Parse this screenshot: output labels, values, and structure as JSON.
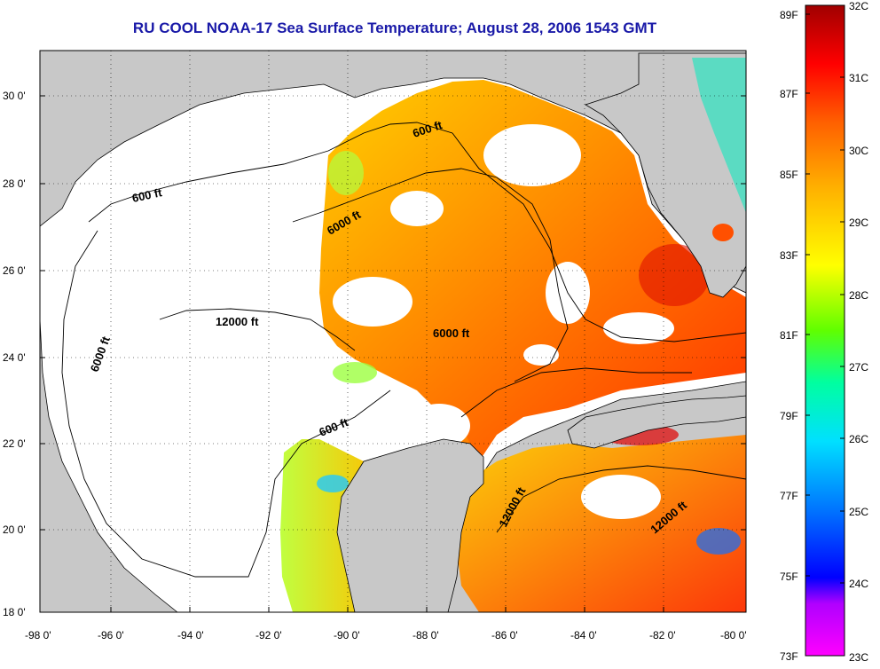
{
  "title": "RU COOL  NOAA-17  Sea Surface Temperature;  August 28, 2006 1543 GMT",
  "lat_ticks": [
    "30 0'",
    "28 0'",
    "26 0'",
    "24 0'",
    "22 0'",
    "20 0'",
    "18 0'"
  ],
  "lon_ticks": [
    "-98 0'",
    "-96 0'",
    "-94 0'",
    "-92 0'",
    "-90 0'",
    "-88 0'",
    "-86 0'",
    "-84 0'",
    "-82 0'",
    "-80 0'"
  ],
  "contour_labels": [
    {
      "text": "600 ft"
    },
    {
      "text": "600 ft"
    },
    {
      "text": "600 ft"
    },
    {
      "text": "6000 ft"
    },
    {
      "text": "6000 ft"
    },
    {
      "text": "6000 ft"
    },
    {
      "text": "12000 ft"
    },
    {
      "text": "12000 ft"
    },
    {
      "text": "12000 ft"
    }
  ],
  "colorbar": {
    "fahrenheit": [
      "89F",
      "87F",
      "85F",
      "83F",
      "81F",
      "79F",
      "77F",
      "75F",
      "73F"
    ],
    "celsius": [
      "32C",
      "31C",
      "30C",
      "29C",
      "28C",
      "27C",
      "26C",
      "25C",
      "24C",
      "23C"
    ],
    "stops": [
      "#ff00ff",
      "#b000ff",
      "#0000ff",
      "#0070ff",
      "#00e0ff",
      "#00ffa0",
      "#60ff00",
      "#ffff00",
      "#ffb000",
      "#ff6000",
      "#ff0000",
      "#a00000"
    ]
  },
  "colors": {
    "land": "#c8c8c8",
    "title": "#1a1aa8"
  }
}
